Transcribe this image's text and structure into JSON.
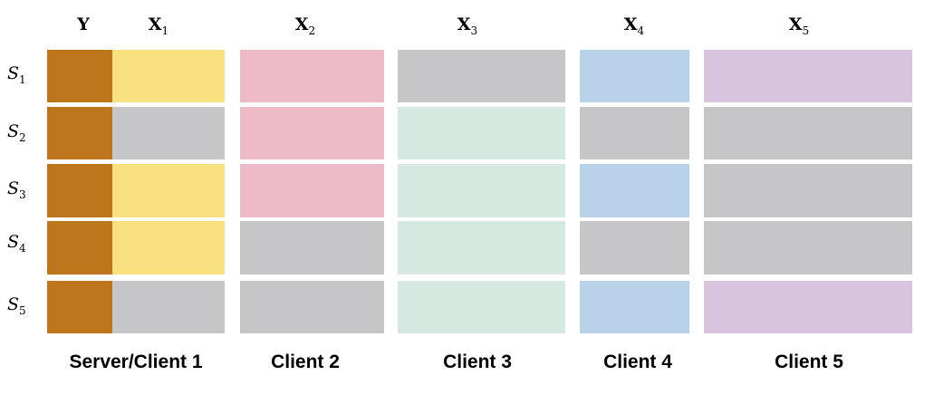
{
  "column_headers": [
    {
      "base": "Y"
    },
    {
      "base": "X",
      "sub": "1"
    },
    {
      "base": "X",
      "sub": "2"
    },
    {
      "base": "X",
      "sub": "3"
    },
    {
      "base": "X",
      "sub": "4"
    },
    {
      "base": "X",
      "sub": "5"
    }
  ],
  "row_labels": [
    {
      "base": "S",
      "sub": "1"
    },
    {
      "base": "S",
      "sub": "2"
    },
    {
      "base": "S",
      "sub": "3"
    },
    {
      "base": "S",
      "sub": "4"
    },
    {
      "base": "S",
      "sub": "5"
    }
  ],
  "client_labels": [
    "Server/Client 1",
    "Client 2",
    "Client 3",
    "Client 4",
    "Client 5"
  ]
}
